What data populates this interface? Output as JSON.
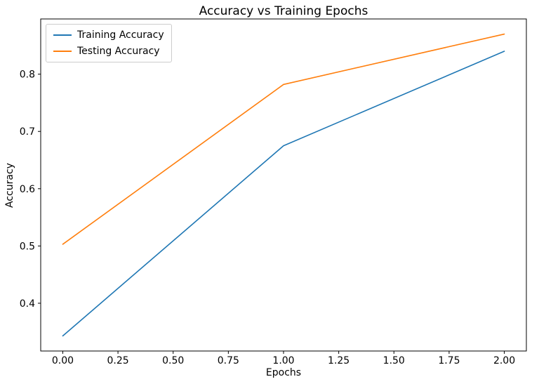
{
  "chart_data": {
    "type": "line",
    "title": "Accuracy vs Training Epochs",
    "xlabel": "Epochs",
    "ylabel": "Accuracy",
    "x": [
      0,
      1,
      2
    ],
    "series": [
      {
        "name": "Training Accuracy",
        "color": "#1f77b4",
        "values": [
          0.343,
          0.675,
          0.84
        ]
      },
      {
        "name": "Testing Accuracy",
        "color": "#ff7f0e",
        "values": [
          0.503,
          0.782,
          0.87
        ]
      }
    ],
    "xlim": [
      -0.1,
      2.1
    ],
    "ylim": [
      0.3166,
      0.8964
    ],
    "xticks": [
      0.0,
      0.25,
      0.5,
      0.75,
      1.0,
      1.25,
      1.5,
      1.75,
      2.0
    ],
    "xtick_labels": [
      "0.00",
      "0.25",
      "0.50",
      "0.75",
      "1.00",
      "1.25",
      "1.50",
      "1.75",
      "2.00"
    ],
    "yticks": [
      0.4,
      0.5,
      0.6,
      0.7,
      0.8
    ],
    "ytick_labels": [
      "0.4",
      "0.5",
      "0.6",
      "0.7",
      "0.8"
    ],
    "legend_position": "upper left",
    "grid": false,
    "frame_color": "#000000"
  }
}
